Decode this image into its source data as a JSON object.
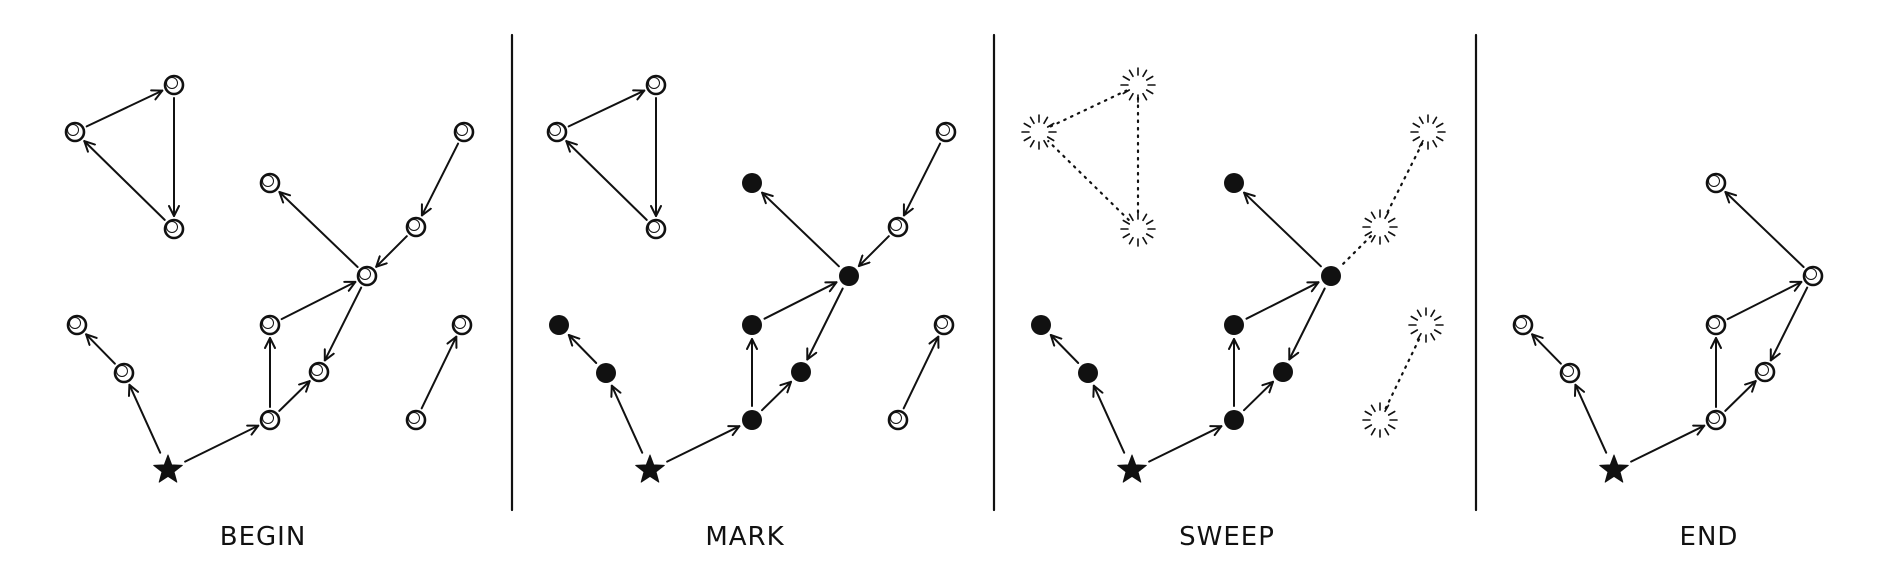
{
  "colors": {
    "ink": "#111111",
    "background": "#ffffff"
  },
  "panels": [
    {
      "key": "begin",
      "label": "BEGIN",
      "state": "initial"
    },
    {
      "key": "mark",
      "label": "MARK",
      "state": "marked"
    },
    {
      "key": "sweep",
      "label": "SWEEP",
      "state": "swept"
    },
    {
      "key": "end",
      "label": "END",
      "state": "collected"
    }
  ],
  "graph": {
    "root": "star-root",
    "nodes": [
      {
        "id": "star-root",
        "kind": "root",
        "reachable": true
      },
      {
        "id": "left-1",
        "reachable": true
      },
      {
        "id": "left-2",
        "reachable": true
      },
      {
        "id": "hub-bottom",
        "reachable": true
      },
      {
        "id": "mid-lower",
        "reachable": true
      },
      {
        "id": "mid-upper",
        "reachable": true
      },
      {
        "id": "hub-right",
        "reachable": true
      },
      {
        "id": "top-mid",
        "reachable": true
      },
      {
        "id": "tri-left",
        "reachable": false
      },
      {
        "id": "tri-top",
        "reachable": false
      },
      {
        "id": "tri-bottom",
        "reachable": false
      },
      {
        "id": "chain-top",
        "reachable": false
      },
      {
        "id": "chain-mid",
        "reachable": false
      },
      {
        "id": "pair-top",
        "reachable": false
      },
      {
        "id": "pair-bottom",
        "reachable": false
      }
    ],
    "edges": [
      {
        "from": "star-root",
        "to": "left-1"
      },
      {
        "from": "left-1",
        "to": "left-2"
      },
      {
        "from": "star-root",
        "to": "hub-bottom"
      },
      {
        "from": "hub-bottom",
        "to": "mid-upper"
      },
      {
        "from": "hub-bottom",
        "to": "mid-lower"
      },
      {
        "from": "mid-upper",
        "to": "hub-right"
      },
      {
        "from": "hub-right",
        "to": "mid-lower"
      },
      {
        "from": "hub-right",
        "to": "top-mid"
      },
      {
        "from": "tri-left",
        "to": "tri-top"
      },
      {
        "from": "tri-top",
        "to": "tri-bottom"
      },
      {
        "from": "tri-bottom",
        "to": "tri-left"
      },
      {
        "from": "chain-top",
        "to": "chain-mid"
      },
      {
        "from": "chain-mid",
        "to": "hub-right"
      },
      {
        "from": "pair-bottom",
        "to": "pair-top"
      }
    ]
  }
}
